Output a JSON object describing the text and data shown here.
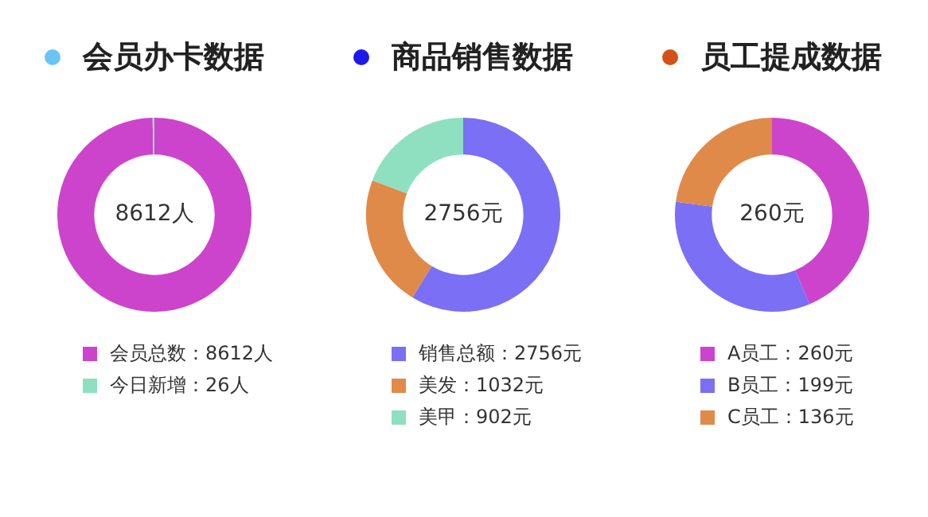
{
  "chart_data": [
    {
      "type": "donut",
      "title": "会员办卡数据",
      "categories": [
        "会员总数：8612人",
        "今日新增：26人"
      ],
      "values": [
        8612,
        26
      ],
      "colors": [
        "#cc44cc",
        "#8ee0c0"
      ],
      "annotations": [
        "8612人"
      ],
      "legend": "bottom"
    },
    {
      "type": "donut",
      "title": "商品销售数据",
      "categories": [
        "销售总额：2756元",
        "美发：1032元",
        "美甲：902元"
      ],
      "values": [
        2756,
        1032,
        902
      ],
      "colors": [
        "#7b6ff5",
        "#e08a4a",
        "#8ee0c0"
      ],
      "annotations": [
        "2756元"
      ],
      "legend": "bottom"
    },
    {
      "type": "donut",
      "title": "员工提成数据",
      "categories": [
        "A员工：260元",
        "B员工：199元",
        "C员工：136元"
      ],
      "values": [
        260,
        199,
        136
      ],
      "colors": [
        "#cc44cc",
        "#7b6ff5",
        "#e08a4a"
      ],
      "annotations": [
        "260元"
      ],
      "legend": "bottom"
    }
  ]
}
